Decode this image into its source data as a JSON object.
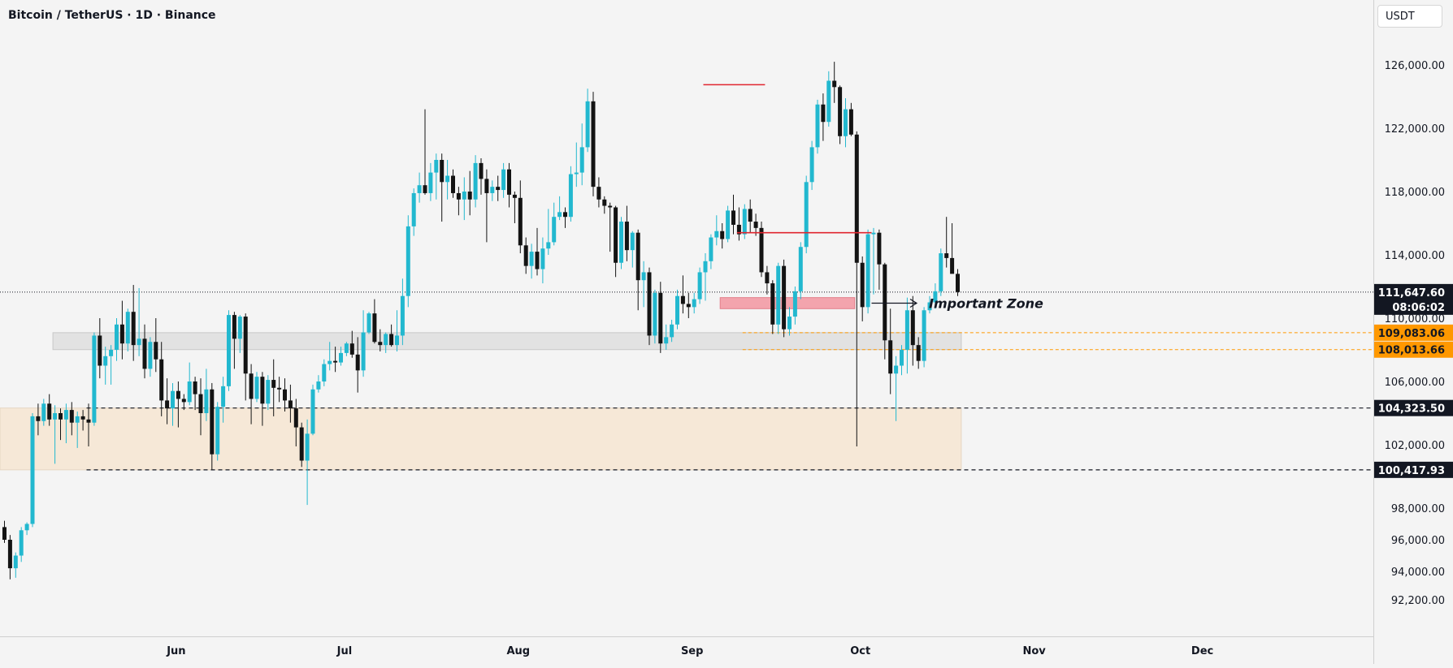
{
  "header": {
    "title": "Bitcoin / TetherUS · 1D · Binance",
    "currency": "USDT"
  },
  "annotation": {
    "important_zone": "Important Zone"
  },
  "colors": {
    "bull": "#22b8cf",
    "bear": "#131313",
    "resistance": "#e0262f",
    "important_zone_fill": "#f3a4ad",
    "support_zone_fill": "#f6e8d7",
    "gray_zone_fill": "#e2e2e2",
    "orange_label": "#ff9800",
    "dark_label": "#131722"
  },
  "chart_data": {
    "type": "candlestick",
    "title": "Bitcoin / TetherUS · 1D · Binance",
    "symbol": "BTCUSDT",
    "timeframe": "1D",
    "exchange": "Binance",
    "y_axis": {
      "ticks": [
        "126,000.00",
        "122,000.00",
        "118,000.00",
        "114,000.00",
        "110,000.00",
        "106,000.00",
        "102,000.00",
        "98,000.00",
        "96,000.00",
        "94,000.00",
        "92,200.00"
      ],
      "range": [
        90600,
        127800
      ]
    },
    "x_axis": {
      "ticks": [
        "Jun",
        "Jul",
        "Aug",
        "Sep",
        "Oct",
        "Nov",
        "Dec"
      ]
    },
    "price_labels": [
      {
        "value": "111,647.60",
        "style": "dark",
        "note": "last price"
      },
      {
        "value": "08:06:02",
        "style": "dark",
        "note": "bar countdown"
      },
      {
        "value": "109,083.06",
        "style": "orange"
      },
      {
        "value": "108,013.66",
        "style": "orange"
      },
      {
        "value": "104,323.50",
        "style": "dark"
      },
      {
        "value": "100,417.93",
        "style": "dark"
      }
    ],
    "levels": {
      "last_price": 111647.6,
      "orange_top": 109083.06,
      "orange_bottom": 108013.66,
      "support_top": 104323.5,
      "support_bottom": 100417.93,
      "resistance_high": 124750,
      "resistance_mid": 115400,
      "important_zone": [
        110600,
        111300
      ]
    },
    "zones": [
      {
        "name": "support-zone",
        "from_bar": -3,
        "to_bar": 171,
        "low": 100417.93,
        "high": 104323.5
      },
      {
        "name": "gray-zone",
        "from_bar": 9,
        "to_bar": 171,
        "low": 108013.66,
        "high": 109083.06
      },
      {
        "name": "important-zone",
        "from_bar": 128,
        "to_bar": 152,
        "low": 110600,
        "high": 111300
      }
    ],
    "resistance_lines": [
      {
        "from_bar": 125,
        "to_bar": 136,
        "price": 124750
      },
      {
        "from_bar": 131,
        "to_bar": 155,
        "price": 115400
      }
    ],
    "candles": [
      [
        96800,
        97200,
        95800,
        96000
      ],
      [
        96000,
        96300,
        93500,
        94200
      ],
      [
        94200,
        95200,
        93600,
        95000
      ],
      [
        95000,
        96800,
        94600,
        96600
      ],
      [
        96600,
        97100,
        96300,
        97000
      ],
      [
        97000,
        104000,
        96800,
        103800
      ],
      [
        103800,
        104600,
        102600,
        103500
      ],
      [
        103500,
        104900,
        103200,
        104600
      ],
      [
        104600,
        105200,
        103200,
        103600
      ],
      [
        103600,
        104500,
        100800,
        104000
      ],
      [
        104000,
        104300,
        102300,
        103600
      ],
      [
        103600,
        104600,
        102100,
        104200
      ],
      [
        104200,
        104700,
        102600,
        103400
      ],
      [
        103400,
        104100,
        101800,
        103800
      ],
      [
        103800,
        104200,
        102900,
        103600
      ],
      [
        103600,
        104600,
        101900,
        103400
      ],
      [
        103400,
        109100,
        103200,
        108900
      ],
      [
        108900,
        110000,
        106200,
        107000
      ],
      [
        107000,
        108200,
        105800,
        107600
      ],
      [
        107600,
        108300,
        105800,
        108000
      ],
      [
        108000,
        110000,
        107300,
        109600
      ],
      [
        109600,
        111100,
        107400,
        108400
      ],
      [
        108400,
        110600,
        107900,
        110400
      ],
      [
        110400,
        112100,
        107300,
        108300
      ],
      [
        108300,
        111900,
        107600,
        108700
      ],
      [
        108700,
        109600,
        106200,
        106800
      ],
      [
        106800,
        108800,
        106300,
        108500
      ],
      [
        108500,
        110000,
        106600,
        107400
      ],
      [
        107400,
        108500,
        103800,
        104800
      ],
      [
        104800,
        106200,
        103300,
        104300
      ],
      [
        104300,
        105900,
        103200,
        105400
      ],
      [
        105400,
        106000,
        103100,
        104900
      ],
      [
        104900,
        105200,
        104200,
        104700
      ],
      [
        104700,
        107200,
        104500,
        106000
      ],
      [
        106000,
        106300,
        104200,
        105200
      ],
      [
        105200,
        106200,
        102600,
        104000
      ],
      [
        104000,
        106800,
        103500,
        105500
      ],
      [
        105500,
        105900,
        100400,
        101400
      ],
      [
        101400,
        104700,
        101000,
        104400
      ],
      [
        104400,
        106300,
        103400,
        105700
      ],
      [
        105700,
        110500,
        105400,
        110200
      ],
      [
        110200,
        110400,
        106800,
        108700
      ],
      [
        108700,
        110200,
        107800,
        110100
      ],
      [
        110100,
        110300,
        104800,
        106500
      ],
      [
        106500,
        107100,
        103300,
        104900
      ],
      [
        104900,
        106600,
        104700,
        106300
      ],
      [
        106300,
        106600,
        103200,
        104600
      ],
      [
        104600,
        106400,
        104200,
        106100
      ],
      [
        106100,
        107400,
        103800,
        105600
      ],
      [
        105600,
        106300,
        104700,
        105500
      ],
      [
        105500,
        106200,
        104100,
        104800
      ],
      [
        104800,
        105800,
        103400,
        104300
      ],
      [
        104300,
        104900,
        101900,
        103100
      ],
      [
        103100,
        103400,
        100600,
        101000
      ],
      [
        101000,
        103600,
        98200,
        102700
      ],
      [
        102700,
        105800,
        102600,
        105500
      ],
      [
        105500,
        106400,
        105300,
        106000
      ],
      [
        106000,
        107400,
        105700,
        107100
      ],
      [
        107100,
        108500,
        106700,
        107300
      ],
      [
        107300,
        108200,
        106600,
        107200
      ],
      [
        107200,
        108200,
        107000,
        107800
      ],
      [
        107800,
        108500,
        107600,
        108400
      ],
      [
        108400,
        109200,
        107500,
        107700
      ],
      [
        107700,
        108800,
        105300,
        106700
      ],
      [
        106700,
        110500,
        106300,
        109100
      ],
      [
        109100,
        110400,
        109000,
        110300
      ],
      [
        110300,
        111200,
        108400,
        108500
      ],
      [
        108500,
        109300,
        107900,
        108300
      ],
      [
        108300,
        109100,
        107800,
        109000
      ],
      [
        109000,
        109600,
        108200,
        108300
      ],
      [
        108300,
        110500,
        107900,
        108900
      ],
      [
        108900,
        112500,
        108300,
        111400
      ],
      [
        111400,
        116500,
        110700,
        115800
      ],
      [
        115800,
        118200,
        115200,
        117900
      ],
      [
        117900,
        119200,
        117300,
        118400
      ],
      [
        118400,
        123200,
        117800,
        117900
      ],
      [
        117900,
        119800,
        117400,
        119200
      ],
      [
        119200,
        120400,
        117500,
        120000
      ],
      [
        120000,
        120400,
        116100,
        118600
      ],
      [
        118600,
        120000,
        117500,
        119000
      ],
      [
        119000,
        119400,
        117600,
        117900
      ],
      [
        117900,
        118300,
        116500,
        117500
      ],
      [
        117500,
        118900,
        116200,
        118000
      ],
      [
        118000,
        119300,
        116500,
        117500
      ],
      [
        117500,
        120300,
        117000,
        119800
      ],
      [
        119800,
        120100,
        117800,
        118800
      ],
      [
        118800,
        119400,
        114800,
        117900
      ],
      [
        117900,
        118700,
        117400,
        118300
      ],
      [
        118300,
        119000,
        117400,
        118100
      ],
      [
        118100,
        119800,
        117600,
        119400
      ],
      [
        119400,
        119800,
        117000,
        117800
      ],
      [
        117800,
        118000,
        116000,
        117600
      ],
      [
        117600,
        118700,
        114100,
        114600
      ],
      [
        114600,
        115100,
        112800,
        113300
      ],
      [
        113300,
        114700,
        112500,
        114200
      ],
      [
        114200,
        115700,
        112700,
        113100
      ],
      [
        113100,
        115100,
        112200,
        114400
      ],
      [
        114400,
        116900,
        114000,
        114800
      ],
      [
        114800,
        117300,
        114600,
        116400
      ],
      [
        116400,
        117700,
        116200,
        116700
      ],
      [
        116700,
        117000,
        115700,
        116400
      ],
      [
        116400,
        119600,
        116100,
        119100
      ],
      [
        119100,
        121100,
        118300,
        119200
      ],
      [
        119200,
        122300,
        118400,
        120800
      ],
      [
        120800,
        124500,
        120500,
        123700
      ],
      [
        123700,
        124300,
        117700,
        118300
      ],
      [
        118300,
        118900,
        117000,
        117500
      ],
      [
        117500,
        117700,
        116600,
        117100
      ],
      [
        117100,
        117300,
        114200,
        117000
      ],
      [
        117000,
        117100,
        112600,
        113500
      ],
      [
        113500,
        116400,
        113100,
        116100
      ],
      [
        116100,
        117100,
        113600,
        114300
      ],
      [
        114300,
        115500,
        113200,
        115400
      ],
      [
        115400,
        115600,
        110500,
        112400
      ],
      [
        112400,
        113600,
        110700,
        112900
      ],
      [
        112900,
        113200,
        108300,
        108900
      ],
      [
        108900,
        111800,
        108400,
        111600
      ],
      [
        111600,
        112300,
        107800,
        108400
      ],
      [
        108400,
        109600,
        108000,
        108800
      ],
      [
        108800,
        109900,
        108500,
        109600
      ],
      [
        109600,
        111800,
        109300,
        111400
      ],
      [
        111400,
        112700,
        110300,
        110900
      ],
      [
        110900,
        111600,
        110000,
        110700
      ],
      [
        110700,
        111600,
        110300,
        111200
      ],
      [
        111200,
        113200,
        110900,
        112900
      ],
      [
        112900,
        114100,
        111100,
        113600
      ],
      [
        113600,
        115300,
        113100,
        115100
      ],
      [
        115100,
        116500,
        114600,
        115500
      ],
      [
        115500,
        116000,
        114400,
        115000
      ],
      [
        115000,
        117100,
        114800,
        116800
      ],
      [
        116800,
        117800,
        115300,
        115900
      ],
      [
        115900,
        117000,
        114900,
        115300
      ],
      [
        115300,
        117200,
        115000,
        116900
      ],
      [
        116900,
        117500,
        115400,
        116100
      ],
      [
        116100,
        116600,
        115200,
        115700
      ],
      [
        115700,
        116100,
        112600,
        112900
      ],
      [
        112900,
        113300,
        111500,
        112200
      ],
      [
        112200,
        112400,
        109000,
        109600
      ],
      [
        109600,
        113500,
        109000,
        113300
      ],
      [
        113300,
        113700,
        108800,
        109300
      ],
      [
        109300,
        110700,
        108900,
        110100
      ],
      [
        110100,
        112000,
        109600,
        111700
      ],
      [
        111700,
        114800,
        111200,
        114500
      ],
      [
        114500,
        119000,
        114100,
        118600
      ],
      [
        118600,
        121200,
        118100,
        120800
      ],
      [
        120800,
        123800,
        120400,
        123500
      ],
      [
        123500,
        124200,
        121200,
        122400
      ],
      [
        122400,
        125600,
        122100,
        125000
      ],
      [
        125000,
        126200,
        123600,
        124600
      ],
      [
        124600,
        124700,
        121000,
        121500
      ],
      [
        121500,
        123900,
        120800,
        123200
      ],
      [
        123200,
        123600,
        121500,
        121600
      ],
      [
        121600,
        121800,
        101900,
        113500
      ],
      [
        113500,
        113900,
        109800,
        110700
      ],
      [
        110700,
        115600,
        110300,
        115300
      ],
      [
        115300,
        115700,
        111500,
        115400
      ],
      [
        115400,
        115600,
        111800,
        113400
      ],
      [
        113400,
        113500,
        107400,
        108600
      ],
      [
        108600,
        110600,
        105200,
        106500
      ],
      [
        106500,
        107600,
        103500,
        107000
      ],
      [
        107000,
        108300,
        106400,
        108000
      ],
      [
        108000,
        111300,
        106500,
        110500
      ],
      [
        110500,
        111400,
        107000,
        108300
      ],
      [
        108300,
        108800,
        106800,
        107300
      ],
      [
        107300,
        110700,
        106900,
        110500
      ],
      [
        110500,
        111400,
        110300,
        111000
      ],
      [
        111000,
        112200,
        110600,
        111700
      ],
      [
        111700,
        114400,
        111400,
        114100
      ],
      [
        114100,
        116400,
        113200,
        113800
      ],
      [
        113800,
        116000,
        113000,
        112800
      ],
      [
        112800,
        113100,
        111400,
        111650
      ]
    ]
  }
}
